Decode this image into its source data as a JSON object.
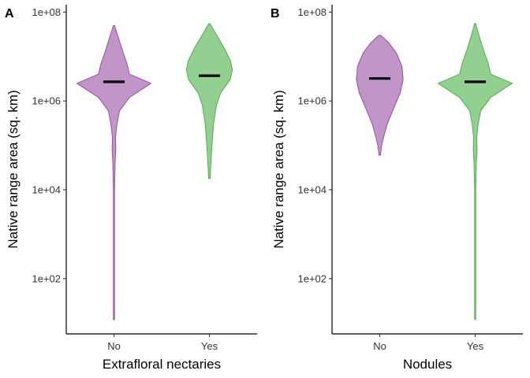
{
  "chart_data": [
    {
      "type": "violin",
      "panel_label": "A",
      "xlabel": "Extrafloral nectaries",
      "ylabel": "Native range area (sq. km)",
      "y_scale": "log10",
      "ylim": [
        3,
        150000000
      ],
      "yticks": [
        100,
        10000,
        1000000,
        100000000
      ],
      "ytick_labels": [
        "1e+02",
        "1e+04",
        "1e+06",
        "1e+08"
      ],
      "categories": [
        "No",
        "Yes"
      ],
      "grid": false,
      "legend": "none",
      "series": [
        {
          "category": "No",
          "color": "#984EA3",
          "median": 2700000,
          "min": 12,
          "max": 50000000,
          "density": [
            [
              12,
              0.002
            ],
            [
              50,
              0.003
            ],
            [
              300,
              0.005
            ],
            [
              2000,
              0.008
            ],
            [
              10000,
              0.012
            ],
            [
              40000,
              0.03
            ],
            [
              80000,
              0.05
            ],
            [
              150000,
              0.04
            ],
            [
              300000,
              0.08
            ],
            [
              600000,
              0.15
            ],
            [
              1200000,
              0.42
            ],
            [
              2500000,
              1.0
            ],
            [
              4000000,
              0.42
            ],
            [
              7000000,
              0.35
            ],
            [
              12000000,
              0.25
            ],
            [
              25000000,
              0.13
            ],
            [
              50000000,
              0.01
            ]
          ]
        },
        {
          "category": "Yes",
          "color": "#4DAF4A",
          "median": 3700000,
          "min": 18000,
          "max": 55000000,
          "density": [
            [
              18000,
              0.02
            ],
            [
              40000,
              0.04
            ],
            [
              100000,
              0.07
            ],
            [
              300000,
              0.11
            ],
            [
              800000,
              0.19
            ],
            [
              1500000,
              0.3
            ],
            [
              3000000,
              0.56
            ],
            [
              5000000,
              0.62
            ],
            [
              8000000,
              0.57
            ],
            [
              15000000,
              0.41
            ],
            [
              30000000,
              0.2
            ],
            [
              55000000,
              0.01
            ]
          ]
        }
      ]
    },
    {
      "type": "violin",
      "panel_label": "B",
      "xlabel": "Nodules",
      "ylabel": "Native range area (sq. km)",
      "y_scale": "log10",
      "ylim": [
        3,
        150000000
      ],
      "yticks": [
        100,
        10000,
        1000000,
        100000000
      ],
      "ytick_labels": [
        "1e+02",
        "1e+04",
        "1e+06",
        "1e+08"
      ],
      "categories": [
        "No",
        "Yes"
      ],
      "grid": false,
      "legend": "none",
      "series": [
        {
          "category": "No",
          "color": "#984EA3",
          "median": 3200000,
          "min": 60000,
          "max": 30000000,
          "density": [
            [
              60000,
              0.02
            ],
            [
              100000,
              0.05
            ],
            [
              150000,
              0.1
            ],
            [
              300000,
              0.2
            ],
            [
              700000,
              0.38
            ],
            [
              1500000,
              0.55
            ],
            [
              3000000,
              0.63
            ],
            [
              6000000,
              0.6
            ],
            [
              12000000,
              0.45
            ],
            [
              20000000,
              0.25
            ],
            [
              30000000,
              0.03
            ]
          ]
        },
        {
          "category": "Yes",
          "color": "#4DAF4A",
          "median": 2700000,
          "min": 12,
          "max": 55000000,
          "density": [
            [
              12,
              0.002
            ],
            [
              50,
              0.003
            ],
            [
              300,
              0.005
            ],
            [
              2000,
              0.008
            ],
            [
              10000,
              0.012
            ],
            [
              40000,
              0.03
            ],
            [
              80000,
              0.05
            ],
            [
              150000,
              0.04
            ],
            [
              300000,
              0.08
            ],
            [
              600000,
              0.15
            ],
            [
              1200000,
              0.42
            ],
            [
              2500000,
              1.0
            ],
            [
              4000000,
              0.42
            ],
            [
              7000000,
              0.35
            ],
            [
              12000000,
              0.25
            ],
            [
              25000000,
              0.13
            ],
            [
              55000000,
              0.01
            ]
          ]
        }
      ]
    }
  ]
}
